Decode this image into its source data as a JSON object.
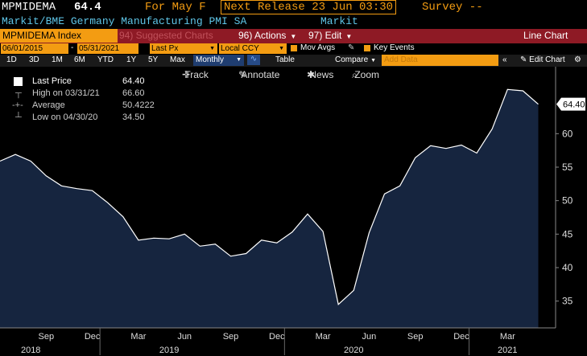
{
  "header": {
    "ticker": "MPMIDEMA",
    "price": "64.4",
    "period": "For May F",
    "next_release": "Next Release 23 Jun 03:30",
    "survey": "Survey --"
  },
  "subheader": {
    "description": "Markit/BME Germany Manufacturing PMI SA",
    "source": "Markit"
  },
  "menubar": {
    "security": "MPMIDEMA Index",
    "suggested": "94) Suggested Charts",
    "actions": "96) Actions",
    "edit": "97) Edit",
    "chart_type": "Line Chart"
  },
  "params": {
    "start_date": "06/01/2015",
    "separator": "-",
    "end_date": "05/31/2021",
    "field": "Last Px",
    "currency": "Local CCY",
    "mov_avgs": "Mov Avgs",
    "key_events": "Key Events"
  },
  "range_bar": {
    "ranges": [
      "1D",
      "3D",
      "1M",
      "6M",
      "YTD",
      "1Y",
      "5Y",
      "Max"
    ],
    "frequency": "Monthly",
    "table": "Table",
    "compare": "Compare",
    "add_data": "Add Data",
    "edit_chart": "Edit Chart"
  },
  "toolbar": {
    "track": "Track",
    "annotate": "Annotate",
    "news": "News",
    "zoom": "Zoom"
  },
  "legend": {
    "last_price_label": "Last Price",
    "last_price_value": "64.40",
    "high_label": "High on 03/31/21",
    "high_value": "66.60",
    "average_label": "Average",
    "average_value": "50.4222",
    "low_label": "Low on 04/30/20",
    "low_value": "34.50"
  },
  "colors": {
    "orange": "#f39c12",
    "menubar": "#8e1a25",
    "area_fill": "#16253f",
    "line": "#ffffff"
  },
  "chart_data": {
    "type": "area",
    "x": [
      "2018-06",
      "2018-07",
      "2018-08",
      "2018-09",
      "2018-10",
      "2018-11",
      "2018-12",
      "2019-01",
      "2019-02",
      "2019-03",
      "2019-04",
      "2019-05",
      "2019-06",
      "2019-07",
      "2019-08",
      "2019-09",
      "2019-10",
      "2019-11",
      "2019-12",
      "2020-01",
      "2020-02",
      "2020-03",
      "2020-04",
      "2020-05",
      "2020-06",
      "2020-07",
      "2020-08",
      "2020-09",
      "2020-10",
      "2020-11",
      "2020-12",
      "2021-01",
      "2021-02",
      "2021-03",
      "2021-04",
      "2021-05"
    ],
    "values": [
      55.9,
      56.9,
      55.9,
      53.7,
      52.2,
      51.8,
      51.5,
      49.7,
      47.6,
      44.1,
      44.4,
      44.3,
      45.0,
      43.2,
      43.5,
      41.7,
      42.1,
      44.1,
      43.7,
      45.3,
      48.0,
      45.4,
      34.5,
      36.6,
      45.2,
      51.0,
      52.2,
      56.4,
      58.2,
      57.8,
      58.3,
      57.1,
      60.7,
      66.6,
      66.4,
      64.4
    ],
    "last_value_label": "64.40",
    "y_ticks": [
      35,
      40,
      45,
      50,
      55,
      60
    ],
    "ylim": [
      31,
      70
    ],
    "x_month_labels": [
      {
        "label": "Sep",
        "date": "2018-09"
      },
      {
        "label": "Dec",
        "date": "2018-12"
      },
      {
        "label": "Mar",
        "date": "2019-03"
      },
      {
        "label": "Jun",
        "date": "2019-06"
      },
      {
        "label": "Sep",
        "date": "2019-09"
      },
      {
        "label": "Dec",
        "date": "2019-12"
      },
      {
        "label": "Mar",
        "date": "2020-03"
      },
      {
        "label": "Jun",
        "date": "2020-06"
      },
      {
        "label": "Sep",
        "date": "2020-09"
      },
      {
        "label": "Dec",
        "date": "2020-12"
      },
      {
        "label": "Mar",
        "date": "2021-03"
      }
    ],
    "x_year_labels": [
      {
        "label": "2018",
        "date": "2018-08"
      },
      {
        "label": "2019",
        "date": "2019-05"
      },
      {
        "label": "2020",
        "date": "2020-05"
      },
      {
        "label": "2021",
        "date": "2021-03"
      }
    ],
    "grid": false,
    "legend_position": "top-left"
  }
}
